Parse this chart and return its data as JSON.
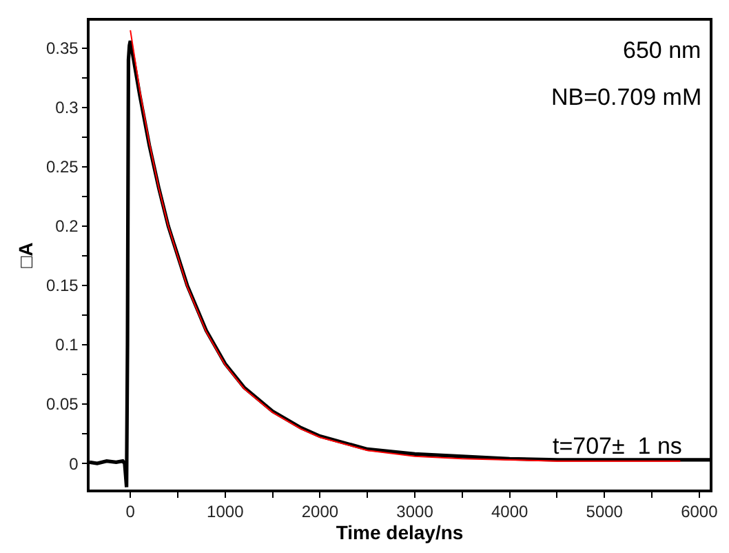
{
  "chart_data": {
    "type": "line",
    "xlabel": "Time delay/ns",
    "ylabel": "□A",
    "annotations": [
      "650 nm",
      "NB=0.709 mM",
      "t=707±  1 ns"
    ],
    "xlim": [
      -430,
      6110
    ],
    "ylim": [
      -0.022,
      0.373
    ],
    "xticks": [
      0,
      {
        "value": 500,
        "label": null
      },
      1000,
      {
        "value": 1500,
        "label": null
      },
      2000,
      {
        "value": 2500,
        "label": null
      },
      3000,
      {
        "value": 3500,
        "label": null
      },
      4000,
      {
        "value": 4500,
        "label": null
      },
      5000,
      {
        "value": 5500,
        "label": null
      },
      6000
    ],
    "yticks": [
      0,
      {
        "value": 0.025,
        "label": null
      },
      0.05,
      {
        "value": 0.075,
        "label": null
      },
      0.1,
      {
        "value": 0.125,
        "label": null
      },
      0.15,
      {
        "value": 0.175,
        "label": null
      },
      0.2,
      {
        "value": 0.225,
        "label": null
      },
      0.25,
      {
        "value": 0.275,
        "label": null
      },
      0.3,
      {
        "value": 0.325,
        "label": null
      },
      0.35
    ],
    "grid": false,
    "marker": "none",
    "line_style": "solid",
    "series": [
      {
        "color": "#000000",
        "x": [
          -430,
          -350,
          -250,
          -150,
          -80,
          -60,
          -50,
          -40,
          -30,
          -20,
          -10,
          0,
          100,
          200,
          300,
          400,
          600,
          800,
          1000,
          1200,
          1500,
          1800,
          2000,
          2500,
          3000,
          3500,
          4000,
          4500,
          5000,
          5500,
          6110
        ],
        "values": [
          0.001,
          0.0,
          0.002,
          0.001,
          0.002,
          0.0,
          -0.01,
          -0.02,
          0.1,
          0.34,
          0.352,
          0.356,
          0.31,
          0.268,
          0.232,
          0.2,
          0.15,
          0.112,
          0.084,
          0.064,
          0.044,
          0.03,
          0.023,
          0.012,
          0.008,
          0.006,
          0.004,
          0.003,
          0.003,
          0.003,
          0.003
        ]
      },
      {
        "color": "#ff0000",
        "x": [
          0,
          100,
          200,
          300,
          400,
          600,
          800,
          1000,
          1200,
          1500,
          1800,
          2000,
          2500,
          3000,
          3500,
          4000,
          4500,
          5000,
          5500,
          5800
        ],
        "values": [
          0.365,
          0.314,
          0.27,
          0.232,
          0.2,
          0.149,
          0.111,
          0.083,
          0.063,
          0.043,
          0.029,
          0.022,
          0.011,
          0.006,
          0.004,
          0.003,
          0.002,
          0.002,
          0.002,
          0.002
        ]
      }
    ]
  }
}
